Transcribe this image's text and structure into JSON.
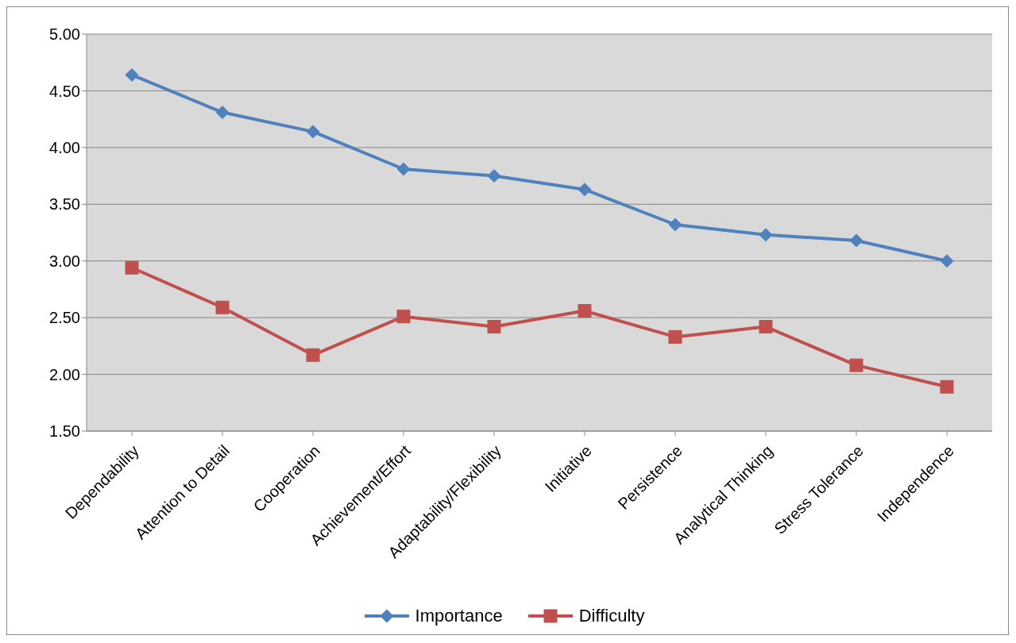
{
  "chart_data": {
    "type": "line",
    "categories": [
      "Dependability",
      "Attention to Detail",
      "Cooperation",
      "Achievement/Effort",
      "Adaptability/Flexibility",
      "Initiative",
      "Persistence",
      "Analytical Thinking",
      "Stress Tolerance",
      "Independence"
    ],
    "series": [
      {
        "name": "Importance",
        "color": "#4f81bd",
        "marker": "diamond",
        "values": [
          4.64,
          4.31,
          4.14,
          3.81,
          3.75,
          3.63,
          3.32,
          3.23,
          3.18,
          3.0
        ]
      },
      {
        "name": "Difficulty",
        "color": "#c0504d",
        "marker": "square",
        "values": [
          2.94,
          2.59,
          2.17,
          2.51,
          2.42,
          2.56,
          2.33,
          2.42,
          2.08,
          1.89
        ]
      }
    ],
    "ylim": [
      1.5,
      5.0
    ],
    "yticks": [
      {
        "value": 1.5,
        "label": "1.50"
      },
      {
        "value": 2.0,
        "label": "2.00"
      },
      {
        "value": 2.5,
        "label": "2.50"
      },
      {
        "value": 3.0,
        "label": "3.00"
      },
      {
        "value": 3.5,
        "label": "3.50"
      },
      {
        "value": 4.0,
        "label": "4.00"
      },
      {
        "value": 4.5,
        "label": "4.50"
      },
      {
        "value": 5.0,
        "label": "5.00"
      }
    ],
    "grid": "y",
    "legend": "bottom",
    "line_style": "solid"
  }
}
